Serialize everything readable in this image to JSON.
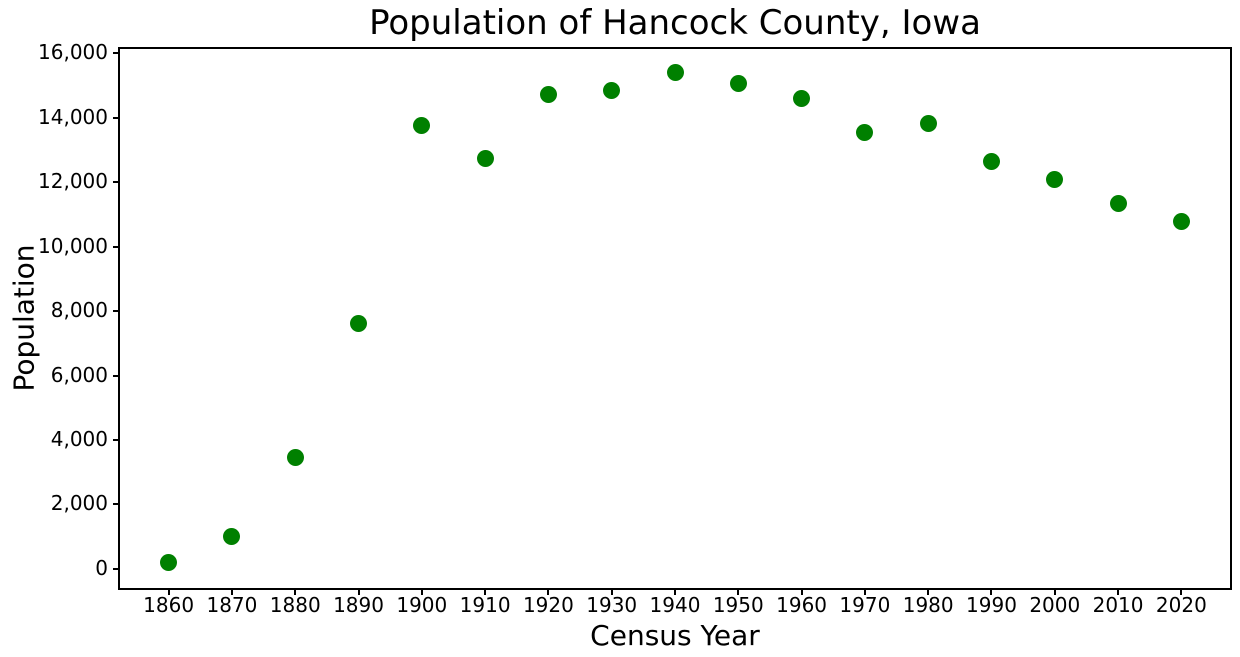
{
  "chart_data": {
    "type": "scatter",
    "title": "Population of Hancock County, Iowa",
    "xlabel": "Census Year",
    "ylabel": "Population",
    "x": [
      1860,
      1870,
      1880,
      1890,
      1900,
      1910,
      1920,
      1930,
      1940,
      1950,
      1960,
      1970,
      1980,
      1990,
      2000,
      2010,
      2020
    ],
    "y": [
      179,
      999,
      3453,
      7621,
      13752,
      12731,
      14723,
      14844,
      15402,
      15077,
      14604,
      13530,
      13833,
      12638,
      12100,
      11341,
      10795
    ],
    "xlim": [
      1852,
      2028
    ],
    "ylim": [
      -660,
      16200
    ],
    "x_ticks": [
      1860,
      1870,
      1880,
      1890,
      1900,
      1910,
      1920,
      1930,
      1940,
      1950,
      1960,
      1970,
      1980,
      1990,
      2000,
      2010,
      2020
    ],
    "x_tick_labels": [
      "1860",
      "1870",
      "1880",
      "1890",
      "1900",
      "1910",
      "1920",
      "1930",
      "1940",
      "1950",
      "1960",
      "1970",
      "1980",
      "1990",
      "2000",
      "2010",
      "2020"
    ],
    "y_ticks": [
      0,
      2000,
      4000,
      6000,
      8000,
      10000,
      12000,
      14000,
      16000
    ],
    "y_tick_labels": [
      "0",
      "2,000",
      "4,000",
      "6,000",
      "8,000",
      "10,000",
      "12,000",
      "14,000",
      "16,000"
    ],
    "marker_color": "#008000",
    "axis_color": "#000000",
    "background_color": "#ffffff",
    "grid": false,
    "legend": null
  }
}
